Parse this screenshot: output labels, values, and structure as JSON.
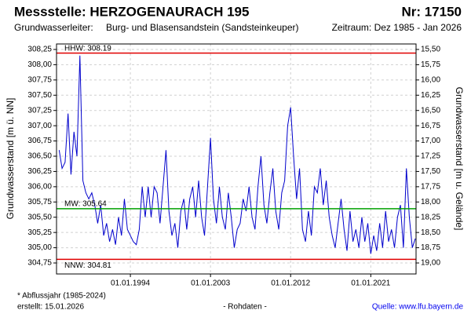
{
  "chart_data": {
    "type": "line",
    "title": "Messstelle: HERZOGENAURACH 195",
    "station_number": "Nr: 17150",
    "aquifer_label": "Grundwasserleiter:",
    "aquifer": "Burg- und Blasensandstein (Sandsteinkeuper)",
    "period": "Zeitraum: Dez 1985 - Jan 2026",
    "ylabel": "Grundwasserstand [m ü. NN]",
    "y2label": "Grundwasserstand [m u. Gelände]",
    "footnote": "* Abflussjahr (1985-2024)",
    "created": "erstellt:  15.01.2026",
    "data_status": "- Rohdaten -",
    "source": "Quelle:  www.lfu.bayern.de",
    "grid": true,
    "xlim": [
      "1985-09-15",
      "2026-02-01"
    ],
    "xticks": [
      {
        "value": "1994-01-01",
        "label": "01.01.1994"
      },
      {
        "value": "2003-01-01",
        "label": "01.01.2003"
      },
      {
        "value": "2012-01-01",
        "label": "01.01.2012"
      },
      {
        "value": "2021-01-01",
        "label": "01.01.2021"
      }
    ],
    "ylim": [
      304.57,
      308.34
    ],
    "yticks": [
      {
        "value": 304.75,
        "label": "304,75"
      },
      {
        "value": 305,
        "label": "305,00"
      },
      {
        "value": 305.25,
        "label": "305,25"
      },
      {
        "value": 305.5,
        "label": "305,50"
      },
      {
        "value": 305.75,
        "label": "305,75"
      },
      {
        "value": 306,
        "label": "306,00"
      },
      {
        "value": 306.25,
        "label": "306,25"
      },
      {
        "value": 306.5,
        "label": "306,50"
      },
      {
        "value": 306.75,
        "label": "306,75"
      },
      {
        "value": 307,
        "label": "307,00"
      },
      {
        "value": 307.25,
        "label": "307,25"
      },
      {
        "value": 307.5,
        "label": "307,50"
      },
      {
        "value": 307.75,
        "label": "307,75"
      },
      {
        "value": 308,
        "label": "308,00"
      },
      {
        "value": 308.25,
        "label": "308,25"
      }
    ],
    "y2lim": [
      19.18,
      15.41
    ],
    "y2ticks": [
      {
        "value": 15.5,
        "label": "15,50"
      },
      {
        "value": 15.75,
        "label": "15,75"
      },
      {
        "value": 16,
        "label": "16,00"
      },
      {
        "value": 16.25,
        "label": "16,25"
      },
      {
        "value": 16.5,
        "label": "16,50"
      },
      {
        "value": 16.75,
        "label": "16,75"
      },
      {
        "value": 17,
        "label": "17,00"
      },
      {
        "value": 17.25,
        "label": "17,25"
      },
      {
        "value": 17.5,
        "label": "17,50"
      },
      {
        "value": 17.75,
        "label": "17,75"
      },
      {
        "value": 18,
        "label": "18,00"
      },
      {
        "value": 18.25,
        "label": "18,25"
      },
      {
        "value": 18.5,
        "label": "18,50"
      },
      {
        "value": 18.75,
        "label": "18,75"
      },
      {
        "value": 19,
        "label": "19,00"
      }
    ],
    "hlines": [
      {
        "label": "HHW: 308.19",
        "value": 308.19,
        "color": "#e00000"
      },
      {
        "label": "MW: 305.64",
        "value": 305.64,
        "color": "#00a000"
      },
      {
        "label": "NNW: 304.81",
        "value": 304.81,
        "color": "#e00000"
      }
    ],
    "x": [
      "1986-01-01",
      "1986-05-01",
      "1986-09-01",
      "1987-01-01",
      "1987-05-01",
      "1987-09-01",
      "1988-01-01",
      "1988-05-01",
      "1988-09-01",
      "1989-01-01",
      "1989-05-01",
      "1989-09-01",
      "1990-01-01",
      "1990-05-01",
      "1990-09-01",
      "1991-01-01",
      "1991-05-01",
      "1991-09-01",
      "1992-01-01",
      "1992-05-01",
      "1992-09-01",
      "1993-01-01",
      "1993-05-01",
      "1993-09-01",
      "1994-01-01",
      "1994-05-01",
      "1994-09-01",
      "1995-01-01",
      "1995-05-01",
      "1995-09-01",
      "1996-01-01",
      "1996-05-01",
      "1996-09-01",
      "1997-01-01",
      "1997-05-01",
      "1997-09-01",
      "1998-01-01",
      "1998-05-01",
      "1998-09-01",
      "1999-01-01",
      "1999-05-01",
      "1999-09-01",
      "2000-01-01",
      "2000-05-01",
      "2000-09-01",
      "2001-01-01",
      "2001-05-01",
      "2001-09-01",
      "2002-01-01",
      "2002-05-01",
      "2002-09-01",
      "2003-01-01",
      "2003-05-01",
      "2003-09-01",
      "2004-01-01",
      "2004-05-01",
      "2004-09-01",
      "2005-01-01",
      "2005-05-01",
      "2005-09-01",
      "2006-01-01",
      "2006-05-01",
      "2006-09-01",
      "2007-01-01",
      "2007-05-01",
      "2007-09-01",
      "2008-01-01",
      "2008-05-01",
      "2008-09-01",
      "2009-01-01",
      "2009-05-01",
      "2009-09-01",
      "2010-01-01",
      "2010-05-01",
      "2010-09-01",
      "2011-01-01",
      "2011-05-01",
      "2011-09-01",
      "2012-01-01",
      "2012-05-01",
      "2012-09-01",
      "2013-01-01",
      "2013-05-01",
      "2013-09-01",
      "2014-01-01",
      "2014-05-01",
      "2014-09-01",
      "2015-01-01",
      "2015-05-01",
      "2015-09-01",
      "2016-01-01",
      "2016-05-01",
      "2016-09-01",
      "2017-01-01",
      "2017-05-01",
      "2017-09-01",
      "2018-01-01",
      "2018-05-01",
      "2018-09-01",
      "2019-01-01",
      "2019-05-01",
      "2019-09-01",
      "2020-01-01",
      "2020-05-01",
      "2020-09-01",
      "2021-01-01",
      "2021-05-01",
      "2021-09-01",
      "2022-01-01",
      "2022-05-01",
      "2022-09-01",
      "2023-01-01",
      "2023-05-01",
      "2023-09-01",
      "2024-01-01",
      "2024-05-01",
      "2024-09-01",
      "2025-01-01",
      "2025-05-01",
      "2025-09-01",
      "2026-01-01"
    ],
    "series": [
      {
        "name": "Grundwasserstand",
        "color": "#0000cc",
        "values": [
          306.6,
          306.3,
          306.4,
          307.2,
          306.2,
          306.9,
          306.5,
          308.15,
          306.1,
          305.9,
          305.8,
          305.9,
          305.7,
          305.4,
          305.7,
          305.2,
          305.4,
          305.1,
          305.3,
          305.05,
          305.5,
          305.2,
          305.8,
          305.3,
          305.2,
          305.1,
          305.05,
          305.3,
          306.0,
          305.5,
          306.0,
          305.5,
          306.0,
          305.9,
          305.4,
          306.0,
          306.6,
          305.6,
          305.2,
          305.4,
          305.0,
          305.6,
          305.8,
          305.3,
          305.8,
          306.0,
          305.5,
          306.1,
          305.5,
          305.2,
          306.0,
          306.8,
          305.8,
          305.4,
          306.0,
          305.5,
          305.3,
          305.9,
          305.5,
          305.0,
          305.3,
          305.4,
          305.8,
          305.6,
          306.0,
          305.5,
          305.3,
          306.0,
          306.5,
          305.7,
          305.4,
          305.9,
          306.3,
          305.6,
          305.3,
          305.9,
          306.1,
          307.0,
          307.3,
          306.5,
          305.8,
          306.3,
          305.3,
          305.1,
          305.6,
          305.2,
          306.0,
          305.9,
          306.3,
          305.7,
          306.1,
          305.5,
          305.2,
          305.0,
          305.4,
          305.8,
          305.3,
          304.95,
          305.6,
          305.1,
          305.3,
          305.0,
          305.5,
          305.1,
          305.4,
          304.9,
          305.2,
          304.95,
          305.4,
          305.0,
          305.6,
          305.1,
          305.3,
          305.0,
          305.5,
          305.7,
          305.0,
          306.3,
          305.5,
          305.0,
          305.15
        ]
      }
    ]
  }
}
